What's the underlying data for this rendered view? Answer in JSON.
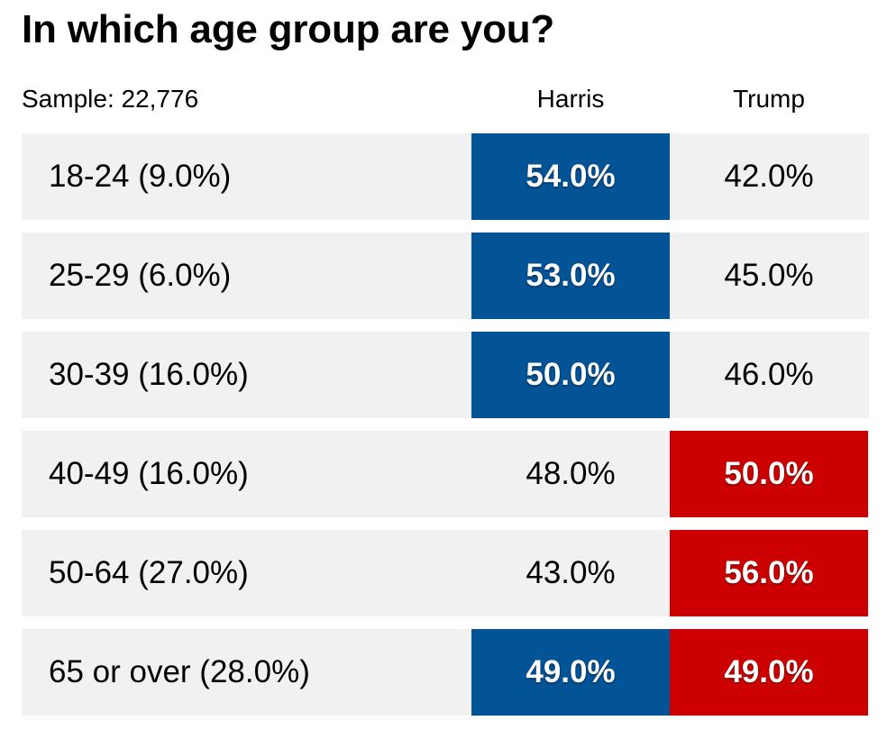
{
  "title": "In which age group are you?",
  "sample": "Sample: 22,776",
  "colors": {
    "harris": "#035397",
    "trump": "#cc0000",
    "row_background": "#f1f1f1"
  },
  "chart_data": {
    "type": "table",
    "title": "In which age group are you?",
    "sample_label": "Sample: 22,776",
    "columns": [
      "Harris",
      "Trump"
    ],
    "rows": [
      {
        "label": "18-24 (9.0%)",
        "values": [
          "54.0%",
          "42.0%"
        ],
        "highlight": [
          "harris"
        ]
      },
      {
        "label": "25-29 (6.0%)",
        "values": [
          "53.0%",
          "45.0%"
        ],
        "highlight": [
          "harris"
        ]
      },
      {
        "label": "30-39 (16.0%)",
        "values": [
          "50.0%",
          "46.0%"
        ],
        "highlight": [
          "harris"
        ]
      },
      {
        "label": "40-49 (16.0%)",
        "values": [
          "48.0%",
          "50.0%"
        ],
        "highlight": [
          "trump"
        ]
      },
      {
        "label": "50-64 (27.0%)",
        "values": [
          "43.0%",
          "56.0%"
        ],
        "highlight": [
          "trump"
        ]
      },
      {
        "label": "65 or over (28.0%)",
        "values": [
          "49.0%",
          "49.0%"
        ],
        "highlight": [
          "harris",
          "trump"
        ]
      }
    ]
  }
}
